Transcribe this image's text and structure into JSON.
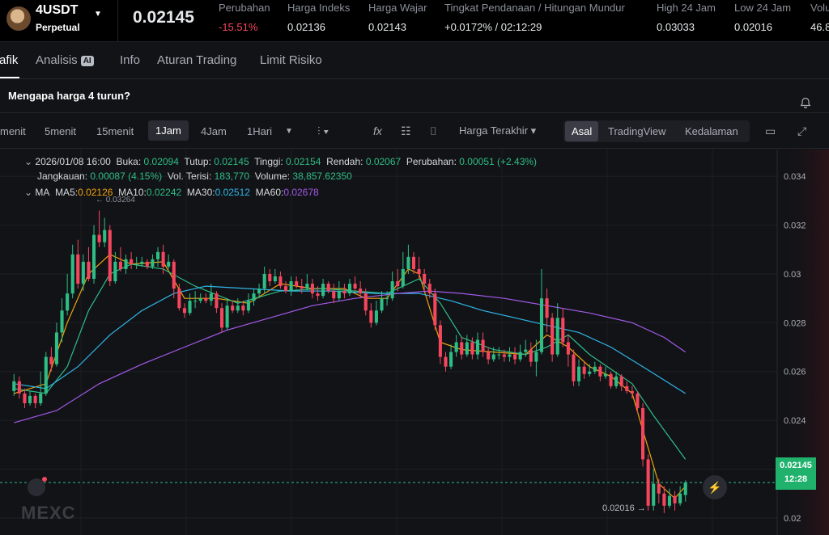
{
  "header": {
    "symbol": "4USDT",
    "contract_type": "Perpetual",
    "last_price": "0.02145",
    "stats": [
      {
        "label": "Perubahan",
        "value": "-15.51%",
        "color": "red"
      },
      {
        "label": "Harga Indeks",
        "value": "0.02136"
      },
      {
        "label": "Harga Wajar",
        "value": "0.02143"
      },
      {
        "label": "Tingkat Pendanaan / Hitungan Mundur",
        "value": "+0.0172% / 02:12:29"
      },
      {
        "label": "High 24 Jam",
        "value": "0.03033"
      },
      {
        "label": "Low 24 Jam",
        "value": "0.02016"
      },
      {
        "label": "Volu",
        "value": "46.8"
      }
    ]
  },
  "tabs": [
    "afik",
    "Analisis",
    "Info",
    "Aturan Trading",
    "Limit Risiko"
  ],
  "ai_badge": "AI",
  "question": "Mengapa harga 4 turun?",
  "toolbar": {
    "timeframes": [
      "menit",
      "5menit",
      "15menit",
      "1Jam",
      "4Jam",
      "1Hari"
    ],
    "active_timeframe": "1Jam",
    "price_type": "Harga Terakhir",
    "views": [
      "Asal",
      "TradingView",
      "Kedalaman"
    ],
    "active_view": "Asal"
  },
  "legend": {
    "date": "2026/01/08 16:00",
    "open_label": "Buka:",
    "open": "0.02094",
    "close_label": "Tutup:",
    "close": "0.02145",
    "high_label": "Tinggi:",
    "high": "0.02154",
    "low_label": "Rendah:",
    "low": "0.02067",
    "change_label": "Perubahan:",
    "change": "0.00051 (+2.43%)",
    "range_label": "Jangkauan:",
    "range": "0.00087 (4.15%)",
    "filled_label": "Vol. Terisi:",
    "filled": "183,770",
    "volume_label": "Volume:",
    "volume": "38,857.62350"
  },
  "ma_legend": {
    "title": "MA",
    "items": [
      {
        "label": "MA5:",
        "value": "0.02126",
        "color": "#f0a30b"
      },
      {
        "label": "MA10:",
        "value": "0.02242",
        "color": "#2ebd85"
      },
      {
        "label": "MA30:",
        "value": "0.02512",
        "color": "#2fb6e8"
      },
      {
        "label": "MA60:",
        "value": "0.02678",
        "color": "#a25ae8"
      }
    ]
  },
  "price_tag": {
    "price": "0.02145",
    "countdown": "12:28"
  },
  "high_marker": "0.03264",
  "low_marker": "0.02016",
  "watermark": "MEXC",
  "chart_data": {
    "type": "candlestick",
    "title": "",
    "ylim": [
      0.0193,
      0.0351
    ],
    "y_ticks": [
      0.02,
      0.022,
      0.024,
      0.026,
      0.028,
      0.03,
      0.032,
      0.034
    ],
    "y_tick_labels": [
      "0.02",
      "0.022",
      "0.024",
      "0.026",
      "0.028",
      "0.03",
      "0.032",
      "0.034"
    ],
    "up_color": "#2ebd85",
    "down_color": "#f6465d",
    "candles": [
      [
        0.0252,
        0.0256,
        0.0259,
        0.025
      ],
      [
        0.0256,
        0.0251,
        0.0258,
        0.0249
      ],
      [
        0.0251,
        0.0247,
        0.0253,
        0.0245
      ],
      [
        0.0247,
        0.025,
        0.0252,
        0.0246
      ],
      [
        0.025,
        0.0247,
        0.0251,
        0.0245
      ],
      [
        0.0247,
        0.0251,
        0.026,
        0.0246
      ],
      [
        0.0251,
        0.0266,
        0.0268,
        0.025
      ],
      [
        0.0266,
        0.0263,
        0.027,
        0.026
      ],
      [
        0.0263,
        0.0276,
        0.028,
        0.0262
      ],
      [
        0.0276,
        0.0285,
        0.029,
        0.0272
      ],
      [
        0.0285,
        0.0292,
        0.03,
        0.0283
      ],
      [
        0.0292,
        0.0308,
        0.0312,
        0.029
      ],
      [
        0.0308,
        0.0296,
        0.0314,
        0.0294
      ],
      [
        0.0296,
        0.0305,
        0.0308,
        0.0293
      ],
      [
        0.0305,
        0.0298,
        0.0311,
        0.0297
      ],
      [
        0.0298,
        0.0316,
        0.032,
        0.0296
      ],
      [
        0.0316,
        0.0313,
        0.0326,
        0.0311
      ],
      [
        0.0313,
        0.0318,
        0.0323,
        0.0311
      ],
      [
        0.0318,
        0.0297,
        0.032,
        0.0295
      ],
      [
        0.0297,
        0.0305,
        0.0309,
        0.0296
      ],
      [
        0.0305,
        0.0302,
        0.0311,
        0.0301
      ],
      [
        0.0302,
        0.0306,
        0.0308,
        0.03
      ],
      [
        0.0306,
        0.0304,
        0.0309,
        0.0302
      ],
      [
        0.0304,
        0.0304,
        0.0307,
        0.0302
      ],
      [
        0.0304,
        0.0305,
        0.0307,
        0.0303
      ],
      [
        0.0305,
        0.0303,
        0.0306,
        0.0302
      ],
      [
        0.0303,
        0.0306,
        0.0308,
        0.0302
      ],
      [
        0.0306,
        0.0309,
        0.0311,
        0.0303
      ],
      [
        0.0309,
        0.0303,
        0.0312,
        0.03
      ],
      [
        0.0303,
        0.0305,
        0.0308,
        0.0302
      ],
      [
        0.0305,
        0.0294,
        0.0306,
        0.029
      ],
      [
        0.0294,
        0.0286,
        0.0296,
        0.0285
      ],
      [
        0.0286,
        0.0284,
        0.0288,
        0.0282
      ],
      [
        0.0284,
        0.0289,
        0.0292,
        0.0283
      ],
      [
        0.0289,
        0.0289,
        0.0293,
        0.0286
      ],
      [
        0.0289,
        0.029,
        0.0292,
        0.0288
      ],
      [
        0.029,
        0.0289,
        0.0292,
        0.0288
      ],
      [
        0.0289,
        0.0292,
        0.0296,
        0.0287
      ],
      [
        0.0292,
        0.0286,
        0.0293,
        0.0284
      ],
      [
        0.0286,
        0.0278,
        0.0288,
        0.0276
      ],
      [
        0.0278,
        0.0287,
        0.029,
        0.0277
      ],
      [
        0.0287,
        0.0285,
        0.0289,
        0.0284
      ],
      [
        0.0285,
        0.0287,
        0.029,
        0.0284
      ],
      [
        0.0287,
        0.0285,
        0.0289,
        0.0283
      ],
      [
        0.0285,
        0.0289,
        0.0292,
        0.0284
      ],
      [
        0.0289,
        0.0292,
        0.0294,
        0.0287
      ],
      [
        0.0292,
        0.0294,
        0.0296,
        0.029
      ],
      [
        0.0294,
        0.03,
        0.0303,
        0.0292
      ],
      [
        0.03,
        0.0297,
        0.0302,
        0.0295
      ],
      [
        0.0297,
        0.0299,
        0.0302,
        0.0296
      ],
      [
        0.0299,
        0.0295,
        0.0301,
        0.0294
      ],
      [
        0.0295,
        0.0293,
        0.0297,
        0.0292
      ],
      [
        0.0293,
        0.0297,
        0.0299,
        0.0291
      ],
      [
        0.0297,
        0.0295,
        0.0299,
        0.0294
      ],
      [
        0.0295,
        0.0294,
        0.0298,
        0.0292
      ],
      [
        0.0294,
        0.0296,
        0.03,
        0.0293
      ],
      [
        0.0296,
        0.0292,
        0.0298,
        0.029
      ],
      [
        0.0292,
        0.0291,
        0.0295,
        0.0289
      ],
      [
        0.0291,
        0.0296,
        0.0298,
        0.029
      ],
      [
        0.0296,
        0.0293,
        0.0297,
        0.0292
      ],
      [
        0.0293,
        0.029,
        0.0296,
        0.0288
      ],
      [
        0.029,
        0.0293,
        0.0297,
        0.0289
      ],
      [
        0.0293,
        0.0292,
        0.0296,
        0.029
      ],
      [
        0.0292,
        0.0296,
        0.0298,
        0.0291
      ],
      [
        0.0296,
        0.0294,
        0.0299,
        0.0293
      ],
      [
        0.0294,
        0.0292,
        0.0297,
        0.029
      ],
      [
        0.0292,
        0.0285,
        0.0294,
        0.0283
      ],
      [
        0.0285,
        0.028,
        0.0288,
        0.0278
      ],
      [
        0.028,
        0.0285,
        0.0289,
        0.0279
      ],
      [
        0.0285,
        0.029,
        0.0293,
        0.0284
      ],
      [
        0.029,
        0.029,
        0.0293,
        0.0287
      ],
      [
        0.029,
        0.0297,
        0.0301,
        0.0289
      ],
      [
        0.0297,
        0.0295,
        0.0302,
        0.0293
      ],
      [
        0.0295,
        0.0302,
        0.0309,
        0.0294
      ],
      [
        0.0302,
        0.0307,
        0.0312,
        0.03
      ],
      [
        0.0307,
        0.0302,
        0.0309,
        0.03
      ],
      [
        0.0302,
        0.03,
        0.0307,
        0.0298
      ],
      [
        0.03,
        0.0296,
        0.0302,
        0.0293
      ],
      [
        0.0296,
        0.0292,
        0.0298,
        0.029
      ],
      [
        0.0292,
        0.0279,
        0.0294,
        0.0277
      ],
      [
        0.0279,
        0.0266,
        0.0281,
        0.0263
      ],
      [
        0.0266,
        0.0262,
        0.0268,
        0.026
      ],
      [
        0.0262,
        0.0268,
        0.0271,
        0.0261
      ],
      [
        0.0268,
        0.0272,
        0.0275,
        0.0266
      ],
      [
        0.0272,
        0.0267,
        0.0274,
        0.0265
      ],
      [
        0.0267,
        0.0272,
        0.0275,
        0.0266
      ],
      [
        0.0272,
        0.0267,
        0.0274,
        0.0265
      ],
      [
        0.0267,
        0.0273,
        0.0276,
        0.0265
      ],
      [
        0.0273,
        0.0268,
        0.0276,
        0.0266
      ],
      [
        0.0268,
        0.0265,
        0.027,
        0.0263
      ],
      [
        0.0265,
        0.0267,
        0.027,
        0.0264
      ],
      [
        0.0267,
        0.0267,
        0.027,
        0.0265
      ],
      [
        0.0267,
        0.0266,
        0.0269,
        0.0264
      ],
      [
        0.0266,
        0.0267,
        0.027,
        0.0264
      ],
      [
        0.0267,
        0.0265,
        0.027,
        0.0263
      ],
      [
        0.0265,
        0.0268,
        0.0271,
        0.0264
      ],
      [
        0.0268,
        0.0269,
        0.0273,
        0.0266
      ],
      [
        0.0269,
        0.0264,
        0.0272,
        0.0262
      ],
      [
        0.0264,
        0.0268,
        0.0273,
        0.0258
      ],
      [
        0.0268,
        0.029,
        0.0302,
        0.0267
      ],
      [
        0.029,
        0.0282,
        0.0294,
        0.0276
      ],
      [
        0.0282,
        0.0267,
        0.0284,
        0.0264
      ],
      [
        0.0267,
        0.0282,
        0.0288,
        0.0266
      ],
      [
        0.0282,
        0.0272,
        0.0286,
        0.027
      ],
      [
        0.0272,
        0.0267,
        0.0275,
        0.0262
      ],
      [
        0.0267,
        0.0256,
        0.0269,
        0.0254
      ],
      [
        0.0256,
        0.0262,
        0.0265,
        0.0254
      ],
      [
        0.0262,
        0.0259,
        0.0264,
        0.0257
      ],
      [
        0.0259,
        0.026,
        0.0263,
        0.0258
      ],
      [
        0.026,
        0.0262,
        0.0264,
        0.0259
      ],
      [
        0.0262,
        0.0258,
        0.0263,
        0.0256
      ],
      [
        0.0258,
        0.0259,
        0.0262,
        0.0257
      ],
      [
        0.0259,
        0.0254,
        0.026,
        0.0253
      ],
      [
        0.0254,
        0.0258,
        0.026,
        0.0253
      ],
      [
        0.0258,
        0.0254,
        0.0259,
        0.0252
      ],
      [
        0.0254,
        0.0252,
        0.0256,
        0.0251
      ],
      [
        0.0252,
        0.0251,
        0.0254,
        0.0249
      ],
      [
        0.0251,
        0.0245,
        0.0252,
        0.0243
      ],
      [
        0.0245,
        0.0224,
        0.0247,
        0.0221
      ],
      [
        0.0224,
        0.0205,
        0.0226,
        0.0203
      ],
      [
        0.0205,
        0.0214,
        0.022,
        0.0203
      ],
      [
        0.0214,
        0.021,
        0.0216,
        0.0206
      ],
      [
        0.021,
        0.0205,
        0.0213,
        0.0202
      ],
      [
        0.0205,
        0.0209,
        0.0212,
        0.0204
      ],
      [
        0.0209,
        0.0206,
        0.0211,
        0.0203
      ],
      [
        0.0206,
        0.021,
        0.0213,
        0.0205
      ],
      [
        0.02094,
        0.02145,
        0.02154,
        0.02067
      ]
    ],
    "ma_series": [
      {
        "name": "MA5",
        "color": "#f0a30b",
        "points": [
          [
            0,
            0.0251
          ],
          [
            6,
            0.0255
          ],
          [
            10,
            0.028
          ],
          [
            14,
            0.03
          ],
          [
            18,
            0.0308
          ],
          [
            22,
            0.0304
          ],
          [
            28,
            0.0305
          ],
          [
            32,
            0.029
          ],
          [
            38,
            0.029
          ],
          [
            44,
            0.0288
          ],
          [
            50,
            0.0296
          ],
          [
            56,
            0.0294
          ],
          [
            62,
            0.0294
          ],
          [
            66,
            0.029
          ],
          [
            70,
            0.029
          ],
          [
            74,
            0.0302
          ],
          [
            76,
            0.03
          ],
          [
            80,
            0.0272
          ],
          [
            84,
            0.0269
          ],
          [
            90,
            0.0268
          ],
          [
            96,
            0.0267
          ],
          [
            100,
            0.0275
          ],
          [
            104,
            0.027
          ],
          [
            108,
            0.0262
          ],
          [
            112,
            0.0258
          ],
          [
            116,
            0.0251
          ],
          [
            118,
            0.0236
          ],
          [
            121,
            0.0214
          ],
          [
            124,
            0.0208
          ],
          [
            126,
            0.0213
          ]
        ]
      },
      {
        "name": "MA10",
        "color": "#2ebd85",
        "points": [
          [
            0,
            0.0253
          ],
          [
            6,
            0.0251
          ],
          [
            10,
            0.0262
          ],
          [
            14,
            0.0285
          ],
          [
            18,
            0.03
          ],
          [
            22,
            0.0304
          ],
          [
            28,
            0.0302
          ],
          [
            34,
            0.0295
          ],
          [
            42,
            0.0288
          ],
          [
            50,
            0.0293
          ],
          [
            58,
            0.0294
          ],
          [
            64,
            0.0293
          ],
          [
            70,
            0.0292
          ],
          [
            76,
            0.0298
          ],
          [
            80,
            0.0288
          ],
          [
            84,
            0.0274
          ],
          [
            90,
            0.0269
          ],
          [
            96,
            0.0267
          ],
          [
            100,
            0.027
          ],
          [
            104,
            0.0275
          ],
          [
            108,
            0.0267
          ],
          [
            112,
            0.0261
          ],
          [
            116,
            0.0255
          ],
          [
            120,
            0.0242
          ],
          [
            126,
            0.0224
          ]
        ]
      },
      {
        "name": "MA30",
        "color": "#2fb6e8",
        "points": [
          [
            0,
            0.0255
          ],
          [
            6,
            0.0253
          ],
          [
            12,
            0.0262
          ],
          [
            18,
            0.0275
          ],
          [
            24,
            0.0285
          ],
          [
            30,
            0.0292
          ],
          [
            36,
            0.0295
          ],
          [
            44,
            0.0294
          ],
          [
            52,
            0.0293
          ],
          [
            60,
            0.0293
          ],
          [
            68,
            0.0292
          ],
          [
            76,
            0.0292
          ],
          [
            82,
            0.0289
          ],
          [
            88,
            0.0285
          ],
          [
            94,
            0.0282
          ],
          [
            100,
            0.0279
          ],
          [
            106,
            0.0276
          ],
          [
            112,
            0.027
          ],
          [
            118,
            0.0262
          ],
          [
            126,
            0.0251
          ]
        ]
      },
      {
        "name": "MA60",
        "color": "#a25ae8",
        "points": [
          [
            0,
            0.0239
          ],
          [
            8,
            0.0244
          ],
          [
            16,
            0.0255
          ],
          [
            24,
            0.0263
          ],
          [
            32,
            0.027
          ],
          [
            40,
            0.0277
          ],
          [
            48,
            0.0282
          ],
          [
            56,
            0.0287
          ],
          [
            64,
            0.029
          ],
          [
            72,
            0.0292
          ],
          [
            78,
            0.0293
          ],
          [
            84,
            0.0292
          ],
          [
            92,
            0.029
          ],
          [
            100,
            0.0287
          ],
          [
            108,
            0.0284
          ],
          [
            116,
            0.028
          ],
          [
            122,
            0.0274
          ],
          [
            126,
            0.0268
          ]
        ]
      }
    ]
  }
}
